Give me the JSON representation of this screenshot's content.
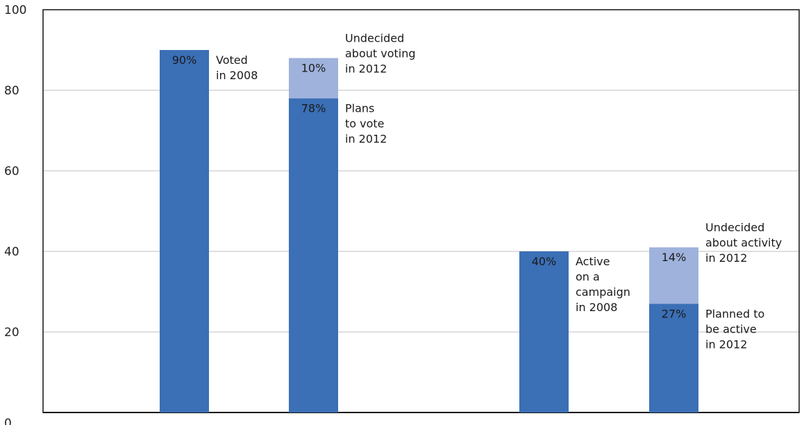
{
  "chart_data": {
    "type": "bar",
    "title": "",
    "xlabel": "",
    "ylabel": "",
    "ylim": [
      0,
      100
    ],
    "yticks": [
      "0",
      "20",
      "40",
      "60",
      "80",
      "100"
    ],
    "grid": true,
    "colors": {
      "primary": "#3b6fb6",
      "secondary": "#9fb2dc",
      "axis": "#111111",
      "grid": "#bfbfbf"
    },
    "bars": [
      {
        "segments": [
          {
            "value": 90,
            "label": "90%",
            "color": "primary",
            "annotation": [
              "Voted",
              "in 2008"
            ]
          }
        ]
      },
      {
        "segments": [
          {
            "value": 78,
            "label": "78%",
            "color": "primary",
            "annotation": [
              "Plans",
              "to vote",
              "in 2012"
            ]
          },
          {
            "value": 10,
            "label": "10%",
            "color": "secondary",
            "annotation": [
              "Undecided",
              "about voting",
              "in 2012"
            ]
          }
        ]
      },
      {
        "segments": [
          {
            "value": 40,
            "label": "40%",
            "color": "primary",
            "annotation": [
              "Active",
              "on a",
              "campaign",
              "in 2008"
            ]
          }
        ]
      },
      {
        "segments": [
          {
            "value": 27,
            "label": "27%",
            "color": "primary",
            "annotation": [
              "Planned to",
              "be active",
              "in 2012"
            ]
          },
          {
            "value": 14,
            "label": "14%",
            "color": "secondary",
            "annotation": [
              "Undecided",
              "about activity",
              "in 2012"
            ]
          }
        ]
      }
    ]
  }
}
